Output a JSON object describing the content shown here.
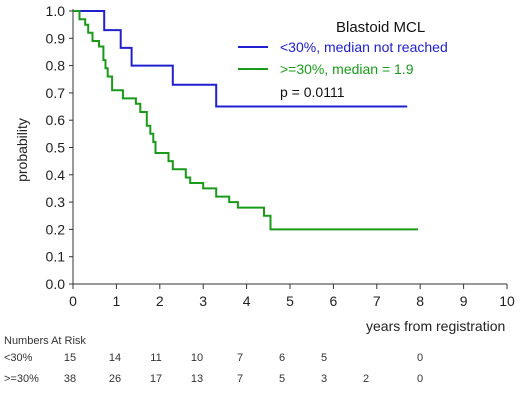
{
  "chart_data": {
    "type": "line",
    "step": true,
    "legend_title": "Blastoid MCL",
    "ylabel": "probability",
    "xlabel": "years from registration",
    "xlim": [
      0,
      10
    ],
    "ylim": [
      0,
      1.0
    ],
    "x_ticks": [
      "0",
      "1",
      "2",
      "3",
      "4",
      "5",
      "6",
      "7",
      "8",
      "9",
      "10"
    ],
    "y_ticks": [
      "0.0",
      "0.1",
      "0.2",
      "0.3",
      "0.4",
      "0.5",
      "0.6",
      "0.7",
      "0.8",
      "0.9",
      "1.0"
    ],
    "annotation": "p = 0.0111",
    "series": [
      {
        "name": "<30%, median not reached",
        "color": "#2020d0",
        "points": [
          [
            0,
            1.0
          ],
          [
            0.72,
            1.0
          ],
          [
            0.72,
            0.93
          ],
          [
            1.1,
            0.93
          ],
          [
            1.1,
            0.865
          ],
          [
            1.35,
            0.865
          ],
          [
            1.35,
            0.8
          ],
          [
            2.3,
            0.8
          ],
          [
            2.3,
            0.73
          ],
          [
            3.3,
            0.73
          ],
          [
            3.3,
            0.65
          ],
          [
            7.7,
            0.65
          ]
        ]
      },
      {
        "name": ">=30%, median = 1.9",
        "color": "#1a9a1a",
        "points": [
          [
            0,
            1.0
          ],
          [
            0.15,
            1.0
          ],
          [
            0.15,
            0.97
          ],
          [
            0.28,
            0.97
          ],
          [
            0.28,
            0.95
          ],
          [
            0.35,
            0.95
          ],
          [
            0.35,
            0.92
          ],
          [
            0.45,
            0.92
          ],
          [
            0.45,
            0.89
          ],
          [
            0.6,
            0.89
          ],
          [
            0.6,
            0.87
          ],
          [
            0.7,
            0.87
          ],
          [
            0.7,
            0.82
          ],
          [
            0.75,
            0.82
          ],
          [
            0.75,
            0.79
          ],
          [
            0.8,
            0.79
          ],
          [
            0.8,
            0.76
          ],
          [
            0.9,
            0.76
          ],
          [
            0.9,
            0.71
          ],
          [
            1.15,
            0.71
          ],
          [
            1.15,
            0.68
          ],
          [
            1.45,
            0.68
          ],
          [
            1.45,
            0.66
          ],
          [
            1.55,
            0.66
          ],
          [
            1.55,
            0.63
          ],
          [
            1.7,
            0.63
          ],
          [
            1.7,
            0.58
          ],
          [
            1.78,
            0.58
          ],
          [
            1.78,
            0.55
          ],
          [
            1.85,
            0.55
          ],
          [
            1.85,
            0.52
          ],
          [
            1.9,
            0.52
          ],
          [
            1.9,
            0.48
          ],
          [
            2.2,
            0.48
          ],
          [
            2.2,
            0.45
          ],
          [
            2.3,
            0.45
          ],
          [
            2.3,
            0.42
          ],
          [
            2.6,
            0.42
          ],
          [
            2.6,
            0.39
          ],
          [
            2.7,
            0.39
          ],
          [
            2.7,
            0.37
          ],
          [
            3.0,
            0.37
          ],
          [
            3.0,
            0.35
          ],
          [
            3.3,
            0.35
          ],
          [
            3.3,
            0.32
          ],
          [
            3.6,
            0.32
          ],
          [
            3.6,
            0.3
          ],
          [
            3.8,
            0.3
          ],
          [
            3.8,
            0.28
          ],
          [
            4.4,
            0.28
          ],
          [
            4.4,
            0.25
          ],
          [
            4.55,
            0.25
          ],
          [
            4.55,
            0.2
          ],
          [
            7.95,
            0.2
          ]
        ]
      }
    ],
    "numbers_at_risk": {
      "title": "Numbers At Risk",
      "rows": [
        {
          "label": "<30%",
          "values": [
            "15",
            "14",
            "11",
            "10",
            "7",
            "6",
            "5",
            "",
            "0"
          ]
        },
        {
          "label": ">=30%",
          "values": [
            "38",
            "26",
            "17",
            "13",
            "7",
            "5",
            "3",
            "2",
            "0"
          ]
        }
      ]
    }
  }
}
